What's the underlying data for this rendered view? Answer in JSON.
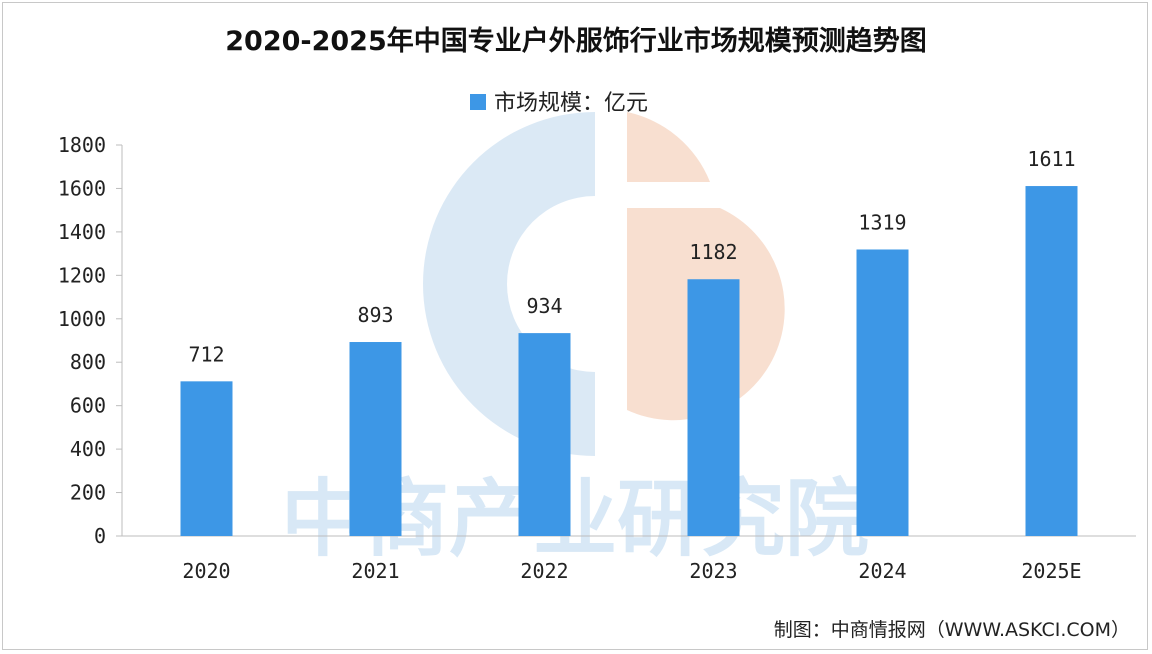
{
  "chart_data": {
    "type": "bar",
    "title": "2020-2025年中国专业户外服饰行业市场规模预测趋势图",
    "legend": "市场规模：亿元",
    "legend_position": "top",
    "categories": [
      "2020",
      "2021",
      "2022",
      "2023",
      "2024",
      "2025E"
    ],
    "series": [
      {
        "name": "市场规模：亿元",
        "values": [
          712,
          893,
          934,
          1182,
          1319,
          1611
        ]
      }
    ],
    "data_labels": [
      "712",
      "893",
      "934",
      "1182",
      "1319",
      "1611"
    ],
    "ylim": [
      0,
      1800
    ],
    "yticks": [
      "0",
      "200",
      "400",
      "600",
      "800",
      "1000",
      "1200",
      "1400",
      "1600",
      "1800"
    ],
    "grid": false,
    "bar_color": "#3d97e6",
    "source": "制图：中商情报网（WWW.ASKCI.COM）",
    "watermark": "中商产业研究院"
  }
}
